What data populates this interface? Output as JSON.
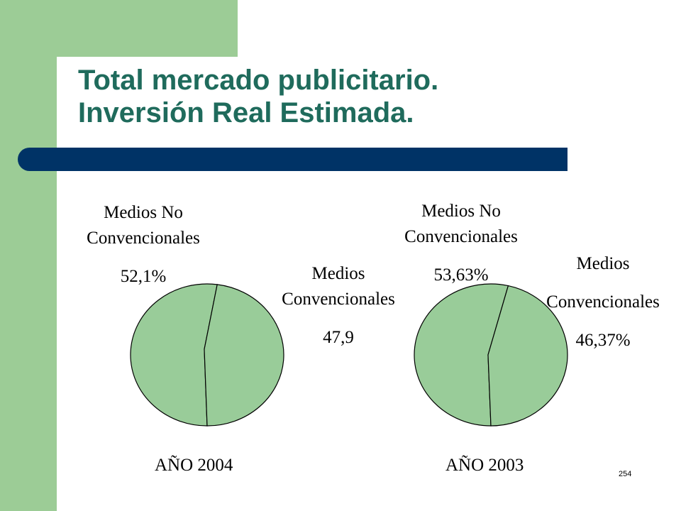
{
  "title": {
    "line1": "Total mercado publicitario.",
    "line2": "Inversión Real Estimada."
  },
  "colors": {
    "band": "#9ccc96",
    "title_text": "#1f6b5c",
    "title_bar": "#003366",
    "pie_fill": "#99cc99",
    "pie_stroke": "#000000"
  },
  "chart_data": [
    {
      "type": "pie",
      "year_label": "AÑO 2004",
      "slices": [
        {
          "label_line1": "Medios No",
          "label_line2": "Convencionales",
          "value_text": "52,1%",
          "value": 52.1
        },
        {
          "label_line1": "Medios",
          "label_line2": "Convencionales",
          "value_text": "47,9",
          "value": 47.9
        }
      ]
    },
    {
      "type": "pie",
      "year_label": "AÑO 2003",
      "slices": [
        {
          "label_line1": "Medios No",
          "label_line2": "Convencionales",
          "value_text": "53,63%",
          "value": 53.63
        },
        {
          "label_line1": "Medios",
          "label_line2": "Convencionales",
          "value_text": "46,37%",
          "value": 46.37
        }
      ]
    }
  ],
  "slide_number": "254"
}
